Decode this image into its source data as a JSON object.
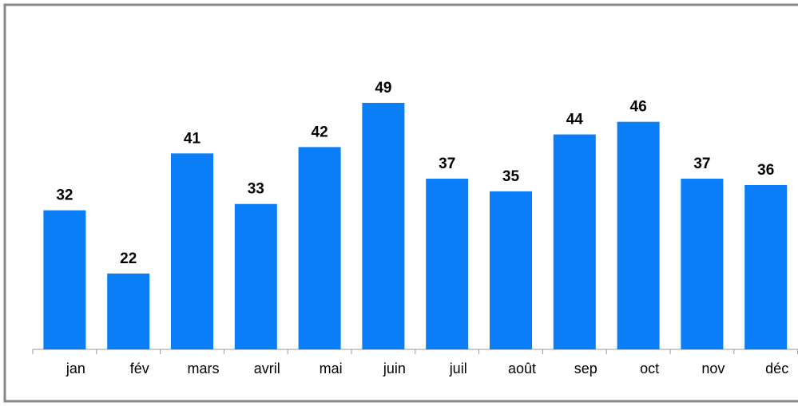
{
  "chart_data": {
    "type": "bar",
    "categories": [
      "jan",
      "fév",
      "mars",
      "avril",
      "mai",
      "juin",
      "juil",
      "août",
      "sep",
      "oct",
      "nov",
      "déc"
    ],
    "values": [
      32,
      22,
      41,
      33,
      42,
      49,
      37,
      35,
      44,
      46,
      37,
      36
    ],
    "color": "#0a7ef7",
    "ylim": [
      10,
      50
    ]
  }
}
